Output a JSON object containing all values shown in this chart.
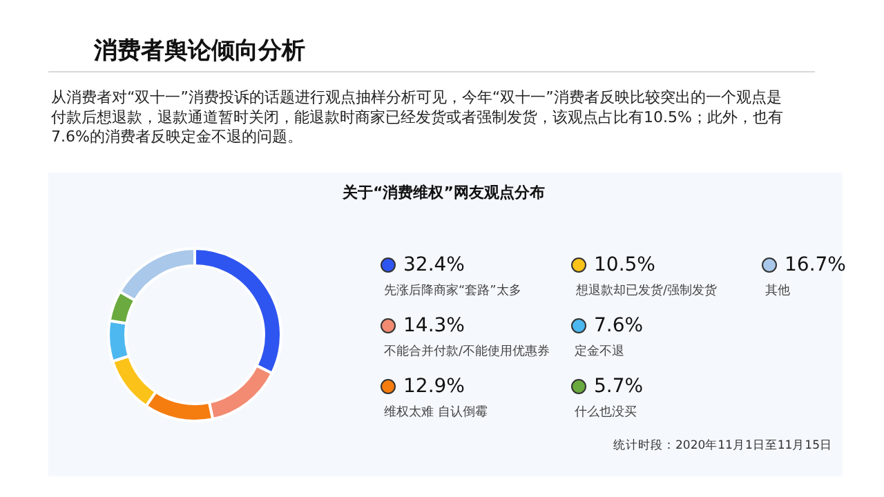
{
  "chart_data": {
    "type": "donut",
    "title": "消费者舆论倾向分析",
    "subtitle": "从消费者对“双十一”消费投诉的话题进行观点抽样分析可见，今年“双十一”消费者反映比较突出的一个观点是付款后想退款，退款通道暂时关闭，能退款时商家已经发货或者强制发货，该观点占比有10.5%；此外，也有7.6%的消费者反映定金不退的问题。",
    "annotations": [
      "关于“消费维权”网友观点分布",
      "统计时段：2020年11月1日至11月15日"
    ],
    "categories": [
      "先涨后降商家“套路”太多",
      "不能合并付款/不能使用优惠券",
      "维权太难 自认倒霉",
      "想退款却已发货/强制发货",
      "定金不退",
      "什么也没买",
      "其他"
    ],
    "values": [
      32.4,
      14.3,
      12.9,
      10.5,
      7.6,
      5.7,
      16.7
    ],
    "value_labels": [
      "32.4%",
      "14.3%",
      "12.9%",
      "10.5%",
      "7.6%",
      "5.7%",
      "16.7%"
    ],
    "colors": [
      "#2f55f0",
      "#f28b72",
      "#f57c0f",
      "#fbc21a",
      "#4db8f0",
      "#6aaa3e",
      "#a9c8ea"
    ],
    "legend": "right"
  }
}
